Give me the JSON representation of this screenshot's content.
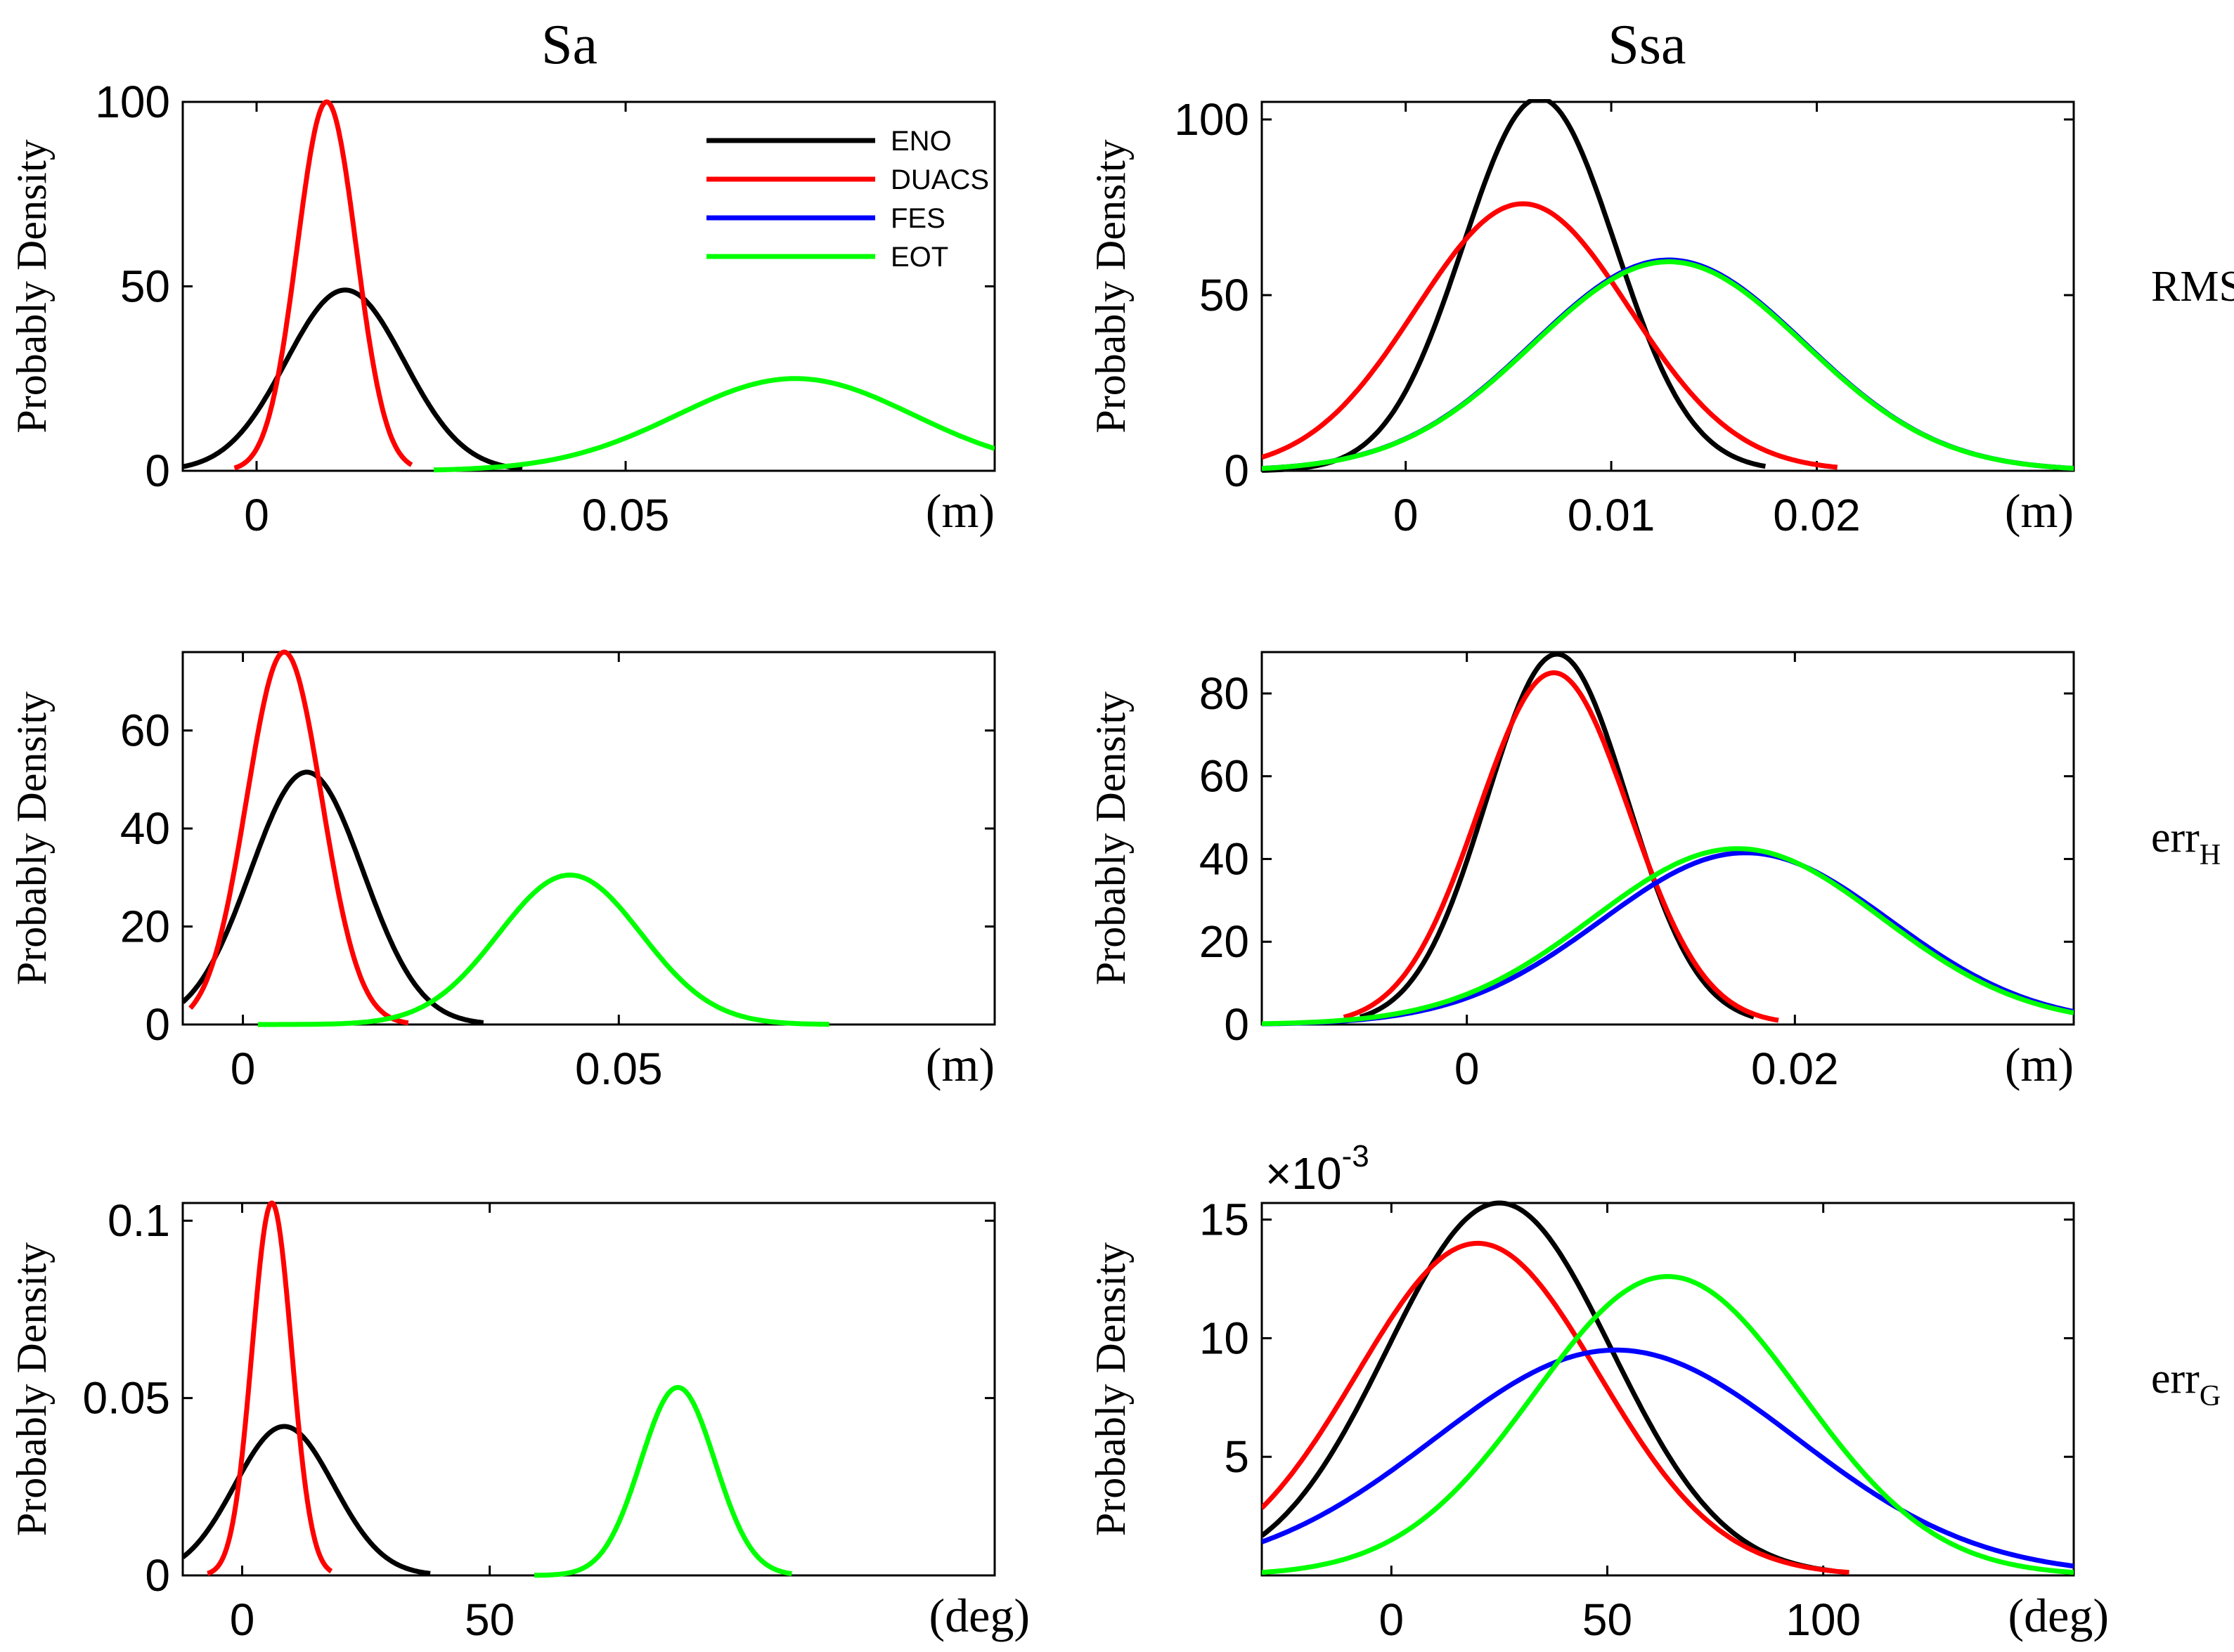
{
  "column_titles": [
    "Sa",
    "Ssa"
  ],
  "row_labels": [
    {
      "base": "RMS",
      "sub": ""
    },
    {
      "base": "err",
      "sub": "H"
    },
    {
      "base": "err",
      "sub": "G"
    }
  ],
  "colors": {
    "ENO": "#000000",
    "DUACS": "#ff0000",
    "FES": "#0000ff",
    "EOT": "#00ff00"
  },
  "chart_data": [
    {
      "id": "sa-rms",
      "type": "line",
      "ylabel": "Probably  Density",
      "xunit": "(m)",
      "xlim": [
        -0.01,
        0.1
      ],
      "ylim": [
        0,
        100
      ],
      "xticks": [
        0,
        0.05
      ],
      "xticklabels": [
        "0",
        "0.05"
      ],
      "yticks": [
        0,
        50,
        100
      ],
      "yticklabels": [
        "0",
        "50",
        "100"
      ],
      "legend": {
        "position": "top-right",
        "entries": [
          "ENO",
          "DUACS",
          "FES",
          "EOT"
        ]
      },
      "series": [
        {
          "name": "ENO",
          "mu": 0.012,
          "sigma": 0.008,
          "peak": 49,
          "range": [
            -0.01,
            0.036
          ]
        },
        {
          "name": "DUACS",
          "mu": 0.0095,
          "sigma": 0.004,
          "peak": 100,
          "range": [
            -0.003,
            0.021
          ]
        },
        {
          "name": "EOT",
          "mu": 0.073,
          "sigma": 0.016,
          "peak": 25,
          "range": [
            0.024,
            0.1
          ]
        }
      ]
    },
    {
      "id": "ssa-rms",
      "type": "line",
      "ylabel": "Probably  Density",
      "xunit": "(m)",
      "xlim": [
        -0.007,
        0.0325
      ],
      "ylim": [
        0,
        105
      ],
      "xticks": [
        0,
        0.01,
        0.02
      ],
      "xticklabels": [
        "0",
        "0.01",
        "0.02"
      ],
      "yticks": [
        0,
        50,
        100
      ],
      "yticklabels": [
        "0",
        "50",
        "100"
      ],
      "series": [
        {
          "name": "ENO",
          "mu": 0.0065,
          "sigma": 0.0037,
          "peak": 106,
          "range": [
            -0.007,
            0.0175
          ]
        },
        {
          "name": "DUACS",
          "mu": 0.0057,
          "sigma": 0.0052,
          "peak": 76,
          "range": [
            -0.007,
            0.021
          ]
        },
        {
          "name": "FES",
          "mu": 0.0128,
          "sigma": 0.0066,
          "peak": 60,
          "range": [
            -0.007,
            0.0325
          ]
        },
        {
          "name": "EOT",
          "mu": 0.0128,
          "sigma": 0.0066,
          "peak": 59.5,
          "range": [
            -0.007,
            0.0325
          ]
        }
      ]
    },
    {
      "id": "sa-errh",
      "type": "line",
      "ylabel": "Probably  Density",
      "xunit": "(m)",
      "xlim": [
        -0.008,
        0.1
      ],
      "ylim": [
        0,
        76
      ],
      "xticks": [
        0,
        0.05
      ],
      "xticklabels": [
        "0",
        "0.05"
      ],
      "yticks": [
        0,
        20,
        40,
        60
      ],
      "yticklabels": [
        "0",
        "20",
        "40",
        "60"
      ],
      "series": [
        {
          "name": "ENO",
          "mu": 0.0085,
          "sigma": 0.0075,
          "peak": 51.5,
          "range": [
            -0.008,
            0.032
          ]
        },
        {
          "name": "DUACS",
          "mu": 0.0055,
          "sigma": 0.005,
          "peak": 76,
          "range": [
            -0.007,
            0.022
          ]
        },
        {
          "name": "EOT",
          "mu": 0.0435,
          "sigma": 0.0095,
          "peak": 30.5,
          "range": [
            0.002,
            0.078
          ]
        }
      ]
    },
    {
      "id": "ssa-errh",
      "type": "line",
      "ylabel": "Probably  Density",
      "xunit": "(m)",
      "xlim": [
        -0.0125,
        0.037
      ],
      "ylim": [
        0,
        90
      ],
      "xticks": [
        0,
        0.02
      ],
      "xticklabels": [
        "0",
        "0.02"
      ],
      "yticks": [
        0,
        20,
        40,
        60,
        80
      ],
      "yticklabels": [
        "0",
        "20",
        "40",
        "60",
        "80"
      ],
      "series": [
        {
          "name": "ENO",
          "mu": 0.0055,
          "sigma": 0.0043,
          "peak": 89.5,
          "range": [
            -0.0065,
            0.0175
          ]
        },
        {
          "name": "DUACS",
          "mu": 0.0053,
          "sigma": 0.0046,
          "peak": 85,
          "range": [
            -0.0075,
            0.019
          ]
        },
        {
          "name": "FES",
          "mu": 0.017,
          "sigma": 0.0088,
          "peak": 41.5,
          "range": [
            -0.0125,
            0.037
          ]
        },
        {
          "name": "EOT",
          "mu": 0.0165,
          "sigma": 0.0088,
          "peak": 42.5,
          "range": [
            -0.0125,
            0.037
          ]
        }
      ]
    },
    {
      "id": "sa-errg",
      "type": "line",
      "ylabel": "Probably  Density",
      "xunit": "(deg)",
      "xlim": [
        -12,
        152
      ],
      "ylim": [
        0,
        0.105
      ],
      "xticks": [
        0,
        50
      ],
      "xticklabels": [
        "0",
        "50"
      ],
      "yticks": [
        0,
        0.05,
        0.1
      ],
      "yticklabels": [
        "0",
        "0.05",
        "0.1"
      ],
      "series": [
        {
          "name": "ENO",
          "mu": 8.5,
          "sigma": 10,
          "peak": 0.042,
          "range": [
            -12,
            38
          ]
        },
        {
          "name": "DUACS",
          "mu": 6,
          "sigma": 4,
          "peak": 0.105,
          "range": [
            -7,
            18
          ]
        },
        {
          "name": "EOT",
          "mu": 88,
          "sigma": 7.5,
          "peak": 0.053,
          "range": [
            59,
            111
          ]
        }
      ]
    },
    {
      "id": "ssa-errg",
      "type": "line",
      "ylabel": "Probably  Density",
      "xunit": "(deg)",
      "xlim": [
        -30,
        158
      ],
      "ylim": [
        0,
        0.0157
      ],
      "xticks": [
        0,
        50,
        100
      ],
      "xticklabels": [
        "0",
        "50",
        "100"
      ],
      "yticks": [
        0.005,
        0.01,
        0.015
      ],
      "yticklabels": [
        "5",
        "10",
        "15"
      ],
      "exponent": {
        "base": "×10",
        "power": "-3"
      },
      "series": [
        {
          "name": "ENO",
          "mu": 25,
          "sigma": 26,
          "peak": 0.0157,
          "range": [
            -30,
            102
          ]
        },
        {
          "name": "DUACS",
          "mu": 20,
          "sigma": 28,
          "peak": 0.014,
          "range": [
            -30,
            106
          ]
        },
        {
          "name": "FES",
          "mu": 52,
          "sigma": 42,
          "peak": 0.0095,
          "range": [
            -30,
            158
          ]
        },
        {
          "name": "EOT",
          "mu": 64,
          "sigma": 31,
          "peak": 0.0126,
          "range": [
            -30,
            158
          ]
        }
      ]
    }
  ]
}
